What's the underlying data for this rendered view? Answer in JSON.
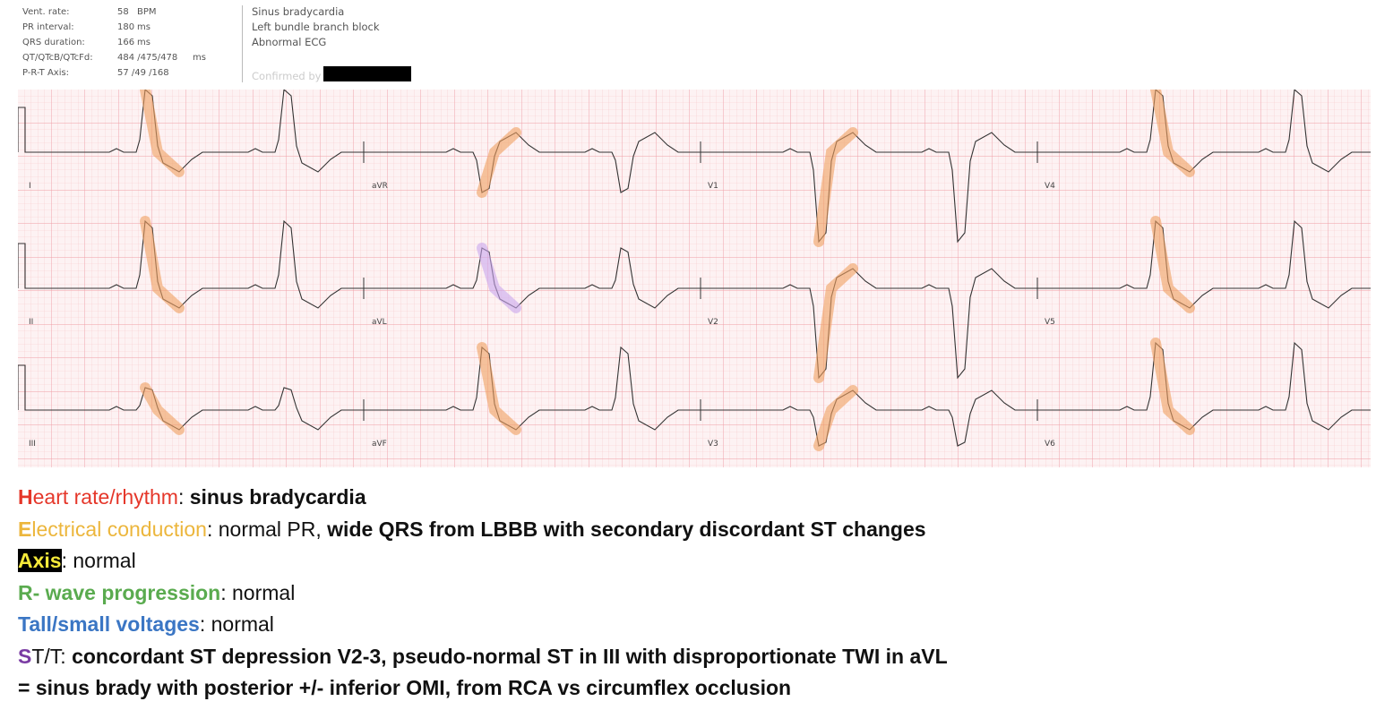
{
  "measurements": [
    {
      "label": "Vent. rate:",
      "value": "58",
      "unit": "BPM"
    },
    {
      "label": "PR interval:",
      "value": "180",
      "unit": "ms"
    },
    {
      "label": "QRS duration:",
      "value": "166",
      "unit": "ms"
    },
    {
      "label": "QT/QTcB/QTcFd:",
      "value": "484 /475/478",
      "unit": "ms"
    },
    {
      "label": "P-R-T Axis:",
      "value": "57 /49 /168"
    }
  ],
  "interpretation": [
    "Sinus bradycardia",
    "Left bundle branch block",
    "Abnormal ECG"
  ],
  "confirmed_by": "Confirmed by",
  "leads": [
    "I",
    "aVR",
    "V1",
    "V4",
    "II",
    "aVL",
    "V2",
    "V5",
    "III",
    "aVF",
    "V3",
    "V6"
  ],
  "summary": [
    [
      {
        "text": "H",
        "color": "#e5372a",
        "bold": true
      },
      {
        "text": "eart rate/rhythm",
        "color": "#e5372a"
      },
      {
        "text": ": "
      },
      {
        "text": "sinus bradycardia",
        "bold": true
      }
    ],
    [
      {
        "text": "E",
        "color": "#ecb63c",
        "bold": true
      },
      {
        "text": "lectrical conduction",
        "color": "#ecb63c"
      },
      {
        "text": ": normal PR, "
      },
      {
        "text": "wide QRS from LBBB with secondary discordant ST changes",
        "bold": true
      }
    ],
    [
      {
        "text": "Axis",
        "color": "#f5e93a",
        "background": "#000",
        "bold": true
      },
      {
        "text": ": normal"
      }
    ],
    [
      {
        "text": "R- wave progression",
        "color": "#5aab4f",
        "bold": true
      },
      {
        "text": ": normal"
      }
    ],
    [
      {
        "text": "Tall/small voltages",
        "color": "#3b76c4",
        "bold": true
      },
      {
        "text": ": normal"
      }
    ],
    [
      {
        "text": "S",
        "color": "#7a3ba3",
        "bold": true
      },
      {
        "text": "T/T: "
      },
      {
        "text": "concordant ST depression V2-3, pseudo-normal ST in III with disproportionate TWI in aVL",
        "bold": true
      }
    ],
    [
      {
        "text": "= sinus brady with posterior +/- inferior OMI, from RCA vs circumflex occlusion",
        "bold": true
      }
    ]
  ]
}
